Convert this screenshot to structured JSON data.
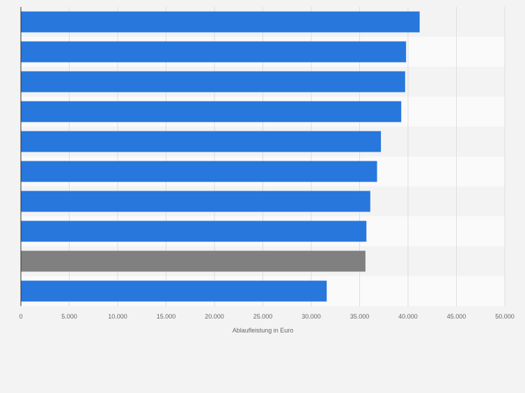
{
  "chart_data": {
    "type": "bar",
    "orientation": "horizontal",
    "xlabel": "Ablaufleistung in Euro",
    "xlim": [
      0,
      50000
    ],
    "x_ticks": [
      0,
      5000,
      10000,
      15000,
      20000,
      25000,
      30000,
      35000,
      40000,
      45000,
      50000
    ],
    "x_tick_labels": [
      "0",
      "5.000",
      "10.000",
      "15.000",
      "20.000",
      "25.000",
      "30.000",
      "35.000",
      "40.000",
      "45.000",
      "50.000"
    ],
    "grid": true,
    "values": [
      41200,
      39800,
      39700,
      39300,
      37200,
      36800,
      36100,
      35700,
      35600,
      31600
    ],
    "bar_colors": [
      "#2777dd",
      "#2777dd",
      "#2777dd",
      "#2777dd",
      "#2777dd",
      "#2777dd",
      "#2777dd",
      "#2777dd",
      "#808080",
      "#2777dd"
    ]
  },
  "colors": {
    "background": "#f3f3f3",
    "band_light": "#fafafa",
    "band_dark": "#f3f3f3",
    "grid": "#dedede",
    "axis": "#333333",
    "tick_text": "#666666"
  }
}
